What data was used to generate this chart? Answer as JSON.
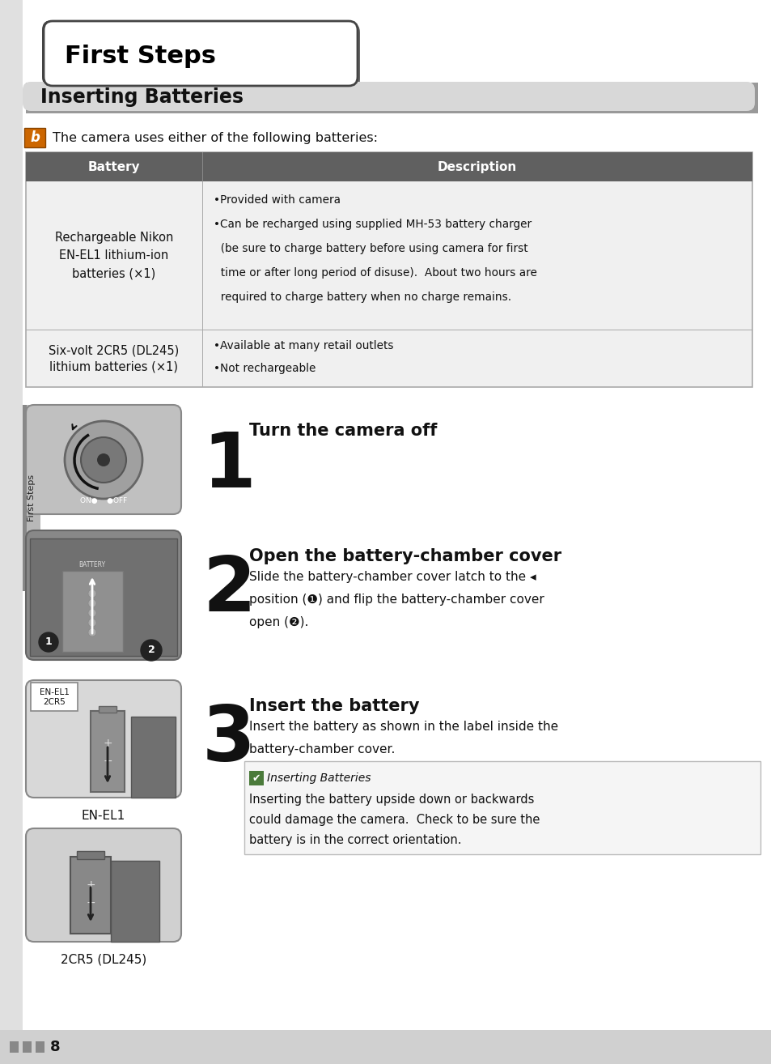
{
  "bg_color": "#ffffff",
  "title_tab_text": "First Steps",
  "title_tab_bg": "#ffffff",
  "title_tab_border": "#444444",
  "section_title": "Inserting Batteries",
  "section_title_bg": "#d4d4d4",
  "intro_text": "The camera uses either of the following batteries:",
  "col1_header": "Battery",
  "col2_header": "Description",
  "row1_col1": "Rechargeable Nikon\nEN-EL1 lithium-ion\nbatteries (×1)",
  "row1_col2_line1": "•Provided with camera",
  "row1_col2_line2": "•Can be recharged using supplied MH-53 battery charger",
  "row1_col2_line3": "  (be sure to charge battery before using camera for first",
  "row1_col2_line4": "  time or after long period of disuse).  About two hours are",
  "row1_col2_line5": "  required to charge battery when no charge remains.",
  "row2_col1_line1": "Six-volt 2CR5 (DL245)",
  "row2_col1_line2": "lithium batteries (×1)",
  "row2_col2_line1": "•Available at many retail outlets",
  "row2_col2_line2": "•Not rechargeable",
  "step1_title": "Turn the camera off",
  "step2_title": "Open the battery-chamber cover",
  "step2_body1": "Slide the battery-chamber cover latch to the ◂",
  "step2_body2": "position (❶) and flip the battery-chamber cover",
  "step2_body3": "open (❷).",
  "step3_title": "Insert the battery",
  "step3_body1": "Insert the battery as shown in the label inside the",
  "step3_body2": "battery-chamber cover.",
  "warning_title": "Inserting Batteries",
  "warning_body1": "Inserting the battery upside down or backwards",
  "warning_body2": "could damage the camera.  Check to be sure the",
  "warning_body3": "battery is in the correct orientation.",
  "caption_en_el1": "EN-EL1",
  "caption_2cr5": "2CR5 (DL245)",
  "page_num": "8",
  "sidebar_text": "First Steps",
  "table_header_bg": "#606060",
  "table_row_bg": "#f0f0f0",
  "table_border": "#aaaaaa",
  "warn_bg": "#f5f5f5",
  "warn_border": "#bbbbbb",
  "warn_icon_bg": "#4a7a3a",
  "left_strip_bg": "#c8c8c8",
  "sidebar_strip_bg": "#b0b0b0",
  "bottom_bar_bg": "#d0d0d0",
  "section_shadow": "#aaaaaa"
}
